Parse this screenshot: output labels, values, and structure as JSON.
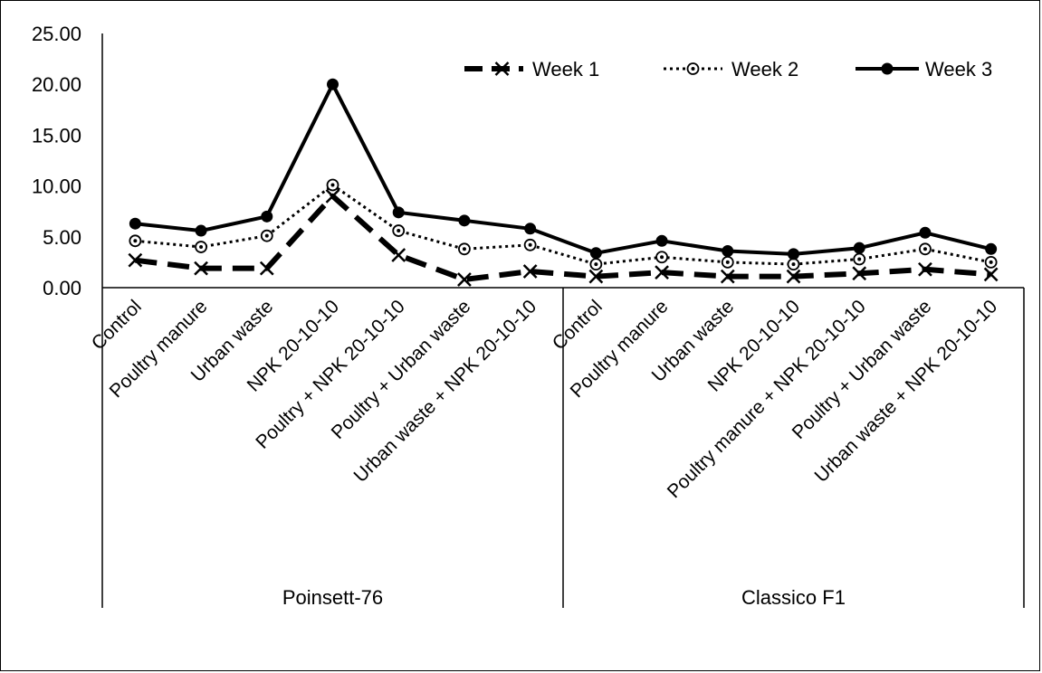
{
  "chart_data": {
    "type": "line",
    "ylim": [
      0,
      25
    ],
    "yticks": [
      "0.00",
      "5.00",
      "10.00",
      "15.00",
      "20.00",
      "25.00"
    ],
    "grid": false,
    "legend_position": "top-right",
    "groups": [
      {
        "label": "Poinsett-76",
        "count": 7
      },
      {
        "label": "Classico F1",
        "count": 7
      }
    ],
    "categories": [
      "Control",
      "Poultry manure",
      "Urban waste",
      "NPK 20-10-10",
      "Poultry + NPK 20-10-10",
      "Poultry + Urban waste",
      "Urban waste + NPK 20-10-10",
      "Control",
      "Poultry manure",
      "Urban waste",
      "NPK 20-10-10",
      "Poultry manure + NPK 20-10-10",
      "Poultry + Urban waste",
      "Urban waste + NPK 20-10-10"
    ],
    "series": [
      {
        "name": "Week 1",
        "style": "dashed",
        "marker": "x",
        "color": "#000000",
        "values": [
          2.7,
          1.9,
          1.9,
          9.0,
          3.2,
          0.8,
          1.6,
          1.1,
          1.5,
          1.1,
          1.1,
          1.4,
          1.8,
          1.3
        ]
      },
      {
        "name": "Week 2",
        "style": "dotted",
        "marker": "circle-dot",
        "color": "#000000",
        "values": [
          4.6,
          4.0,
          5.1,
          10.1,
          5.6,
          3.8,
          4.2,
          2.3,
          3.0,
          2.5,
          2.3,
          2.8,
          3.8,
          2.5
        ]
      },
      {
        "name": "Week 3",
        "style": "solid",
        "marker": "filled-circle",
        "color": "#000000",
        "values": [
          6.3,
          5.6,
          7.0,
          20.0,
          7.4,
          6.6,
          5.8,
          3.4,
          4.6,
          3.6,
          3.3,
          3.9,
          5.4,
          3.8
        ]
      }
    ]
  }
}
